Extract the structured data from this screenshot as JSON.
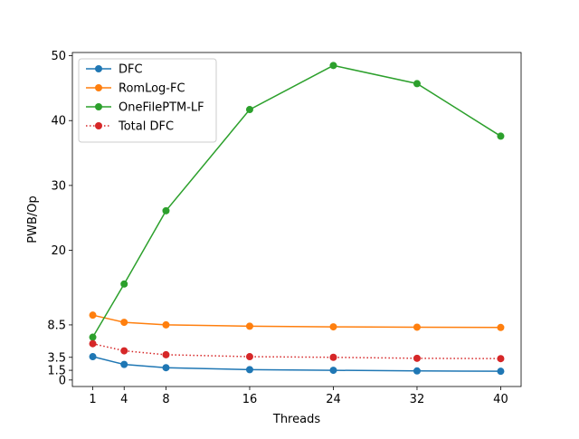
{
  "chart_data": {
    "type": "line",
    "title": "",
    "xlabel": "Threads",
    "ylabel": "PWB/Op",
    "x": [
      1,
      4,
      8,
      16,
      24,
      32,
      40
    ],
    "xticks": [
      1,
      4,
      8,
      16,
      24,
      32,
      40
    ],
    "yticks": [
      0,
      1.5,
      3.5,
      8.5,
      20,
      30,
      40,
      50
    ],
    "xlim": [
      -0.95,
      41.95
    ],
    "ylim": [
      -1,
      50.5
    ],
    "grid": false,
    "legend_position": "top-left",
    "series": [
      {
        "name": "DFC",
        "color": "#1f77b4",
        "linestyle": "solid",
        "values": [
          3.6,
          2.4,
          1.9,
          1.6,
          1.5,
          1.4,
          1.35
        ]
      },
      {
        "name": "RomLog-FC",
        "color": "#ff7f0e",
        "linestyle": "solid",
        "values": [
          10.0,
          8.9,
          8.5,
          8.3,
          8.2,
          8.15,
          8.1
        ]
      },
      {
        "name": "OneFilePTM-LF",
        "color": "#2ca02c",
        "linestyle": "solid",
        "values": [
          6.6,
          14.8,
          26.1,
          41.7,
          48.5,
          45.7,
          37.6
        ]
      },
      {
        "name": "Total DFC",
        "color": "#d62728",
        "linestyle": "dotted",
        "values": [
          5.6,
          4.5,
          3.9,
          3.6,
          3.5,
          3.35,
          3.3
        ]
      }
    ]
  }
}
